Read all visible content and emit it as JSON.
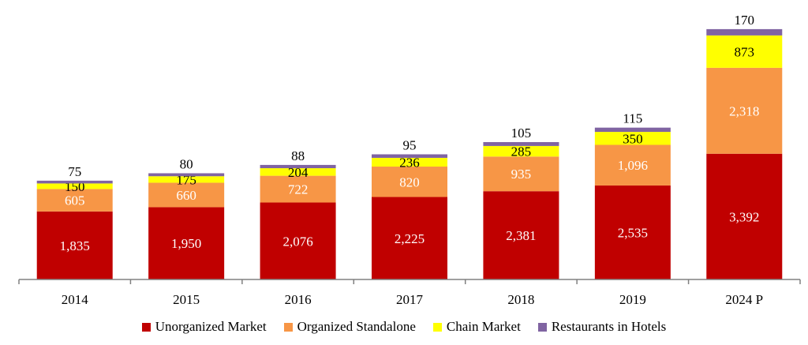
{
  "chart_data": {
    "type": "bar",
    "stacked": true,
    "categories": [
      "2014",
      "2015",
      "2016",
      "2017",
      "2018",
      "2019",
      "2024 P"
    ],
    "series": [
      {
        "name": "Unorganized Market",
        "color": "#C00000",
        "label_color": "#ffffff",
        "values": [
          1835,
          1950,
          2076,
          2225,
          2381,
          2535,
          3392
        ],
        "labels": [
          "1,835",
          "1,950",
          "2,076",
          "2,225",
          "2,381",
          "2,535",
          "3,392"
        ]
      },
      {
        "name": "Organized Standalone",
        "color": "#F79646",
        "label_color": "#ffffff",
        "values": [
          605,
          660,
          722,
          820,
          935,
          1096,
          2318
        ],
        "labels": [
          "605",
          "660",
          "722",
          "820",
          "935",
          "1,096",
          "2,318"
        ]
      },
      {
        "name": "Chain Market",
        "color": "#FFFF00",
        "label_color": "#000000",
        "values": [
          150,
          175,
          204,
          236,
          285,
          350,
          873
        ],
        "labels": [
          "150",
          "175",
          "204",
          "236",
          "285",
          "350",
          "873"
        ]
      },
      {
        "name": "Restaurants in Hotels",
        "color": "#8064A2",
        "label_color": "#000000",
        "values": [
          75,
          80,
          88,
          95,
          105,
          115,
          170
        ],
        "labels": [
          "75",
          "80",
          "88",
          "95",
          "105",
          "115",
          "170"
        ]
      }
    ],
    "ylim": [
      0,
      6900
    ],
    "grid": false,
    "legend_position": "bottom",
    "axis_color": "#808080"
  }
}
